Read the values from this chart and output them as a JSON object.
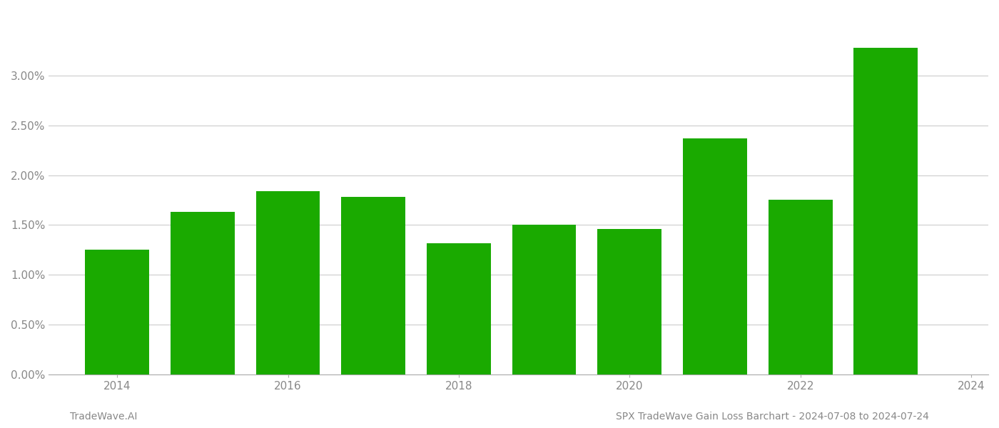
{
  "years": [
    2014,
    2015,
    2016,
    2017,
    2018,
    2019,
    2020,
    2021,
    2022,
    2023
  ],
  "values": [
    0.0125,
    0.0163,
    0.0184,
    0.0178,
    0.0132,
    0.015,
    0.0146,
    0.0237,
    0.0175,
    0.0328
  ],
  "bar_color": "#1aaa00",
  "background_color": "#ffffff",
  "grid_color": "#cccccc",
  "axis_color": "#aaaaaa",
  "tick_color": "#888888",
  "ylim": [
    0.0,
    0.0365
  ],
  "yticks": [
    0.0,
    0.005,
    0.01,
    0.015,
    0.02,
    0.025,
    0.03
  ],
  "ytick_labels": [
    "0.00%",
    "0.50%",
    "1.00%",
    "1.50%",
    "2.00%",
    "2.50%",
    "3.00%"
  ],
  "xtick_positions": [
    0,
    2,
    4,
    6,
    8,
    10
  ],
  "xtick_labels": [
    "2014",
    "2016",
    "2018",
    "2020",
    "2022",
    "2024"
  ],
  "footer_left": "TradeWave.AI",
  "footer_right": "SPX TradeWave Gain Loss Barchart - 2024-07-08 to 2024-07-24",
  "bar_width": 0.75
}
